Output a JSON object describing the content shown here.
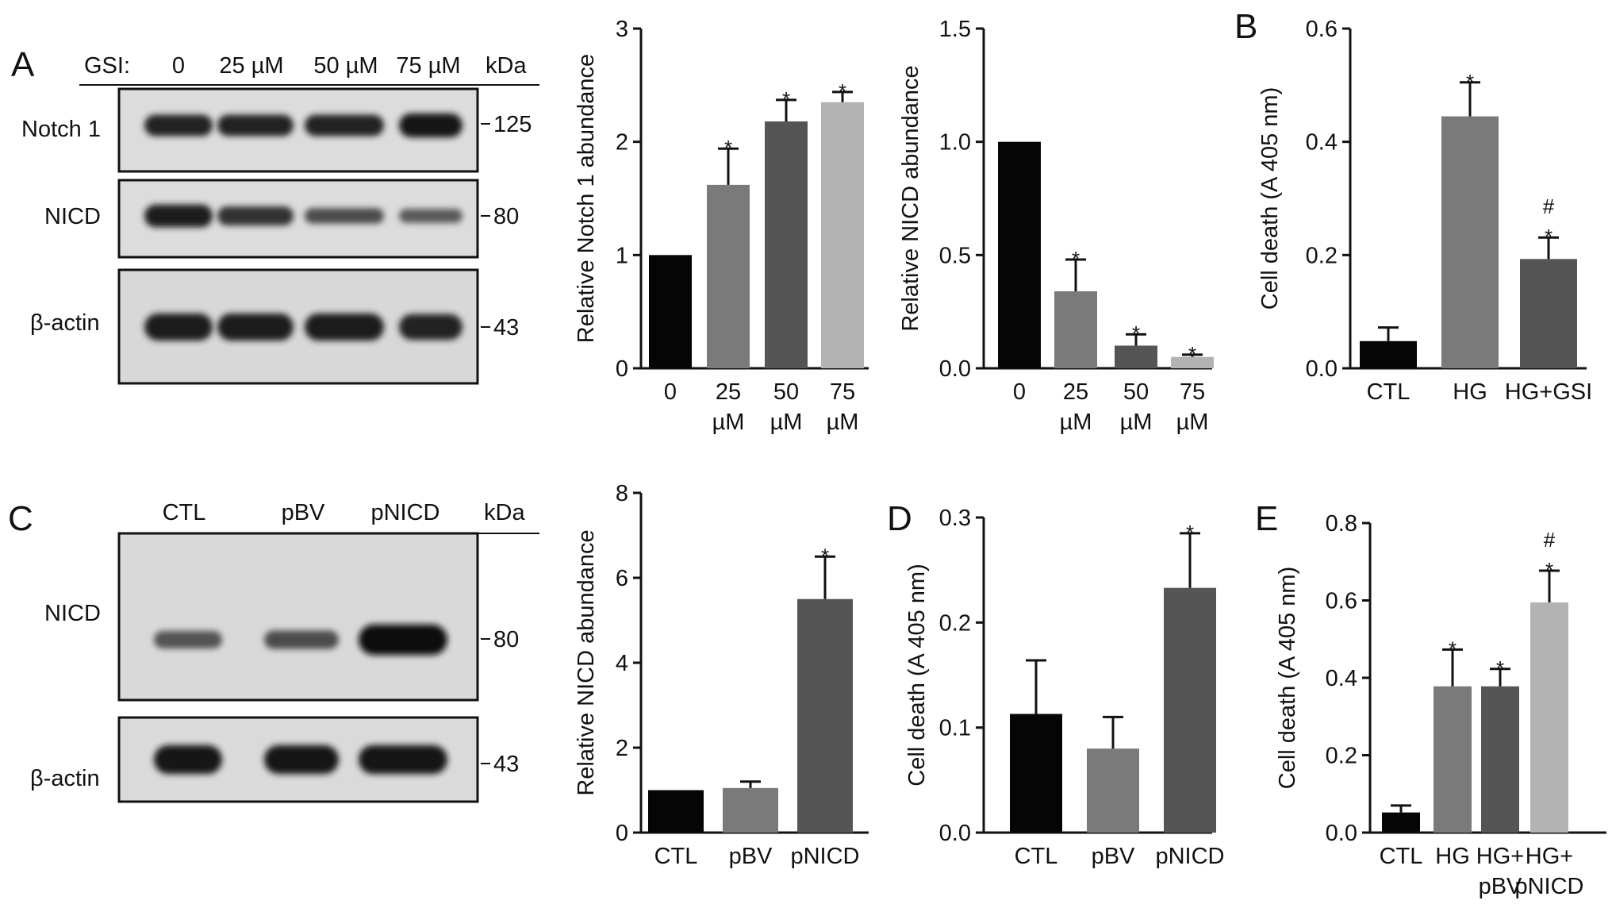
{
  "figure": {
    "panel_letters": [
      "A",
      "B",
      "C",
      "D",
      "E"
    ],
    "blots": [
      {
        "panel": "A",
        "header_label": "GSI:",
        "lanes": [
          "0",
          "25 µM",
          "50 µM",
          "75 µM"
        ],
        "kda_label": "kDa",
        "rows": [
          {
            "label": "Notch 1",
            "kda": "125",
            "intensity": [
              0.85,
              0.85,
              0.85,
              0.95
            ]
          },
          {
            "label": "NICD",
            "kda": "80",
            "intensity": [
              0.9,
              0.75,
              0.55,
              0.45
            ]
          },
          {
            "label": "β-actin",
            "kda": "43",
            "intensity": [
              0.9,
              0.9,
              0.9,
              0.85
            ]
          }
        ]
      },
      {
        "panel": "C",
        "header_label": "",
        "lanes": [
          "CTL",
          "pBV",
          "pNICD"
        ],
        "kda_label": "kDa",
        "rows": [
          {
            "label": "NICD",
            "kda": "80",
            "intensity": [
              0.5,
              0.55,
              1.0
            ]
          },
          {
            "label": "β-actin",
            "kda": "43",
            "intensity": [
              0.95,
              0.95,
              0.95
            ]
          }
        ]
      }
    ]
  },
  "chart_data": [
    {
      "type": "bar",
      "panel": "A",
      "ylabel": "Relative Notch 1 abundance",
      "categories": [
        [
          "0"
        ],
        [
          "25",
          "µM"
        ],
        [
          "50",
          "µM"
        ],
        [
          "75",
          "µM"
        ]
      ],
      "values": [
        1.0,
        1.62,
        2.18,
        2.35
      ],
      "errors": [
        0,
        0.32,
        0.19,
        0.09
      ],
      "annotations": [
        "",
        "*",
        "*",
        "*"
      ],
      "bar_colors": [
        "#050505",
        "#7a7a7a",
        "#555555",
        "#b3b3b3"
      ],
      "ylim": [
        0,
        3
      ],
      "yticks": [
        "0",
        "1",
        "2",
        "3"
      ]
    },
    {
      "type": "bar",
      "panel": "A",
      "ylabel": "Relative NICD abundance",
      "categories": [
        [
          "0"
        ],
        [
          "25",
          "µM"
        ],
        [
          "50",
          "µM"
        ],
        [
          "75",
          "µM"
        ]
      ],
      "values": [
        1.0,
        0.34,
        0.1,
        0.05
      ],
      "errors": [
        0,
        0.14,
        0.05,
        0.01
      ],
      "annotations": [
        "",
        "*",
        "*",
        "*"
      ],
      "bar_colors": [
        "#050505",
        "#7a7a7a",
        "#555555",
        "#b3b3b3"
      ],
      "ylim": [
        0,
        1.5
      ],
      "yticks": [
        "0.0",
        "0.5",
        "1.0",
        "1.5"
      ]
    },
    {
      "type": "bar",
      "panel": "B",
      "ylabel": "Cell death (A 405 nm)",
      "categories": [
        [
          "CTL"
        ],
        [
          "HG"
        ],
        [
          "HG+GSI"
        ]
      ],
      "values": [
        0.048,
        0.445,
        0.193
      ],
      "errors": [
        0.024,
        0.06,
        0.038
      ],
      "annotations": [
        "",
        "*",
        "#\n*"
      ],
      "bar_colors": [
        "#050505",
        "#7a7a7a",
        "#555555"
      ],
      "ylim": [
        0,
        0.6
      ],
      "yticks": [
        "0.0",
        "0.2",
        "0.4",
        "0.6"
      ]
    },
    {
      "type": "bar",
      "panel": "C",
      "ylabel": "Relative NICD abundance",
      "categories": [
        [
          "CTL"
        ],
        [
          "pBV"
        ],
        [
          "pNICD"
        ]
      ],
      "values": [
        1.0,
        1.05,
        5.5
      ],
      "errors": [
        0,
        0.15,
        1.0
      ],
      "annotations": [
        "",
        "",
        "*"
      ],
      "bar_colors": [
        "#050505",
        "#7a7a7a",
        "#555555"
      ],
      "ylim": [
        0,
        8
      ],
      "yticks": [
        "0",
        "2",
        "4",
        "6",
        "8"
      ]
    },
    {
      "type": "bar",
      "panel": "D",
      "ylabel": "Cell death (A 405 nm)",
      "categories": [
        [
          "CTL"
        ],
        [
          "pBV"
        ],
        [
          "pNICD"
        ]
      ],
      "values": [
        0.113,
        0.08,
        0.233
      ],
      "errors": [
        0.051,
        0.03,
        0.052
      ],
      "annotations": [
        "",
        "",
        "*"
      ],
      "bar_colors": [
        "#050505",
        "#7a7a7a",
        "#555555"
      ],
      "ylim": [
        0,
        0.3
      ],
      "yticks": [
        "0.0",
        "0.1",
        "0.2",
        "0.3"
      ]
    },
    {
      "type": "bar",
      "panel": "E",
      "ylabel": "Cell death (A 405 nm)",
      "categories": [
        [
          "CTL"
        ],
        [
          "HG"
        ],
        [
          "HG+",
          "pBV"
        ],
        [
          "HG+",
          "pNICD"
        ]
      ],
      "values": [
        0.052,
        0.378,
        0.378,
        0.595
      ],
      "errors": [
        0.018,
        0.095,
        0.045,
        0.082
      ],
      "annotations": [
        "",
        "*",
        "*",
        "#\n*"
      ],
      "bar_colors": [
        "#050505",
        "#7a7a7a",
        "#555555",
        "#b3b3b3"
      ],
      "ylim": [
        0,
        0.8
      ],
      "yticks": [
        "0.0",
        "0.2",
        "0.4",
        "0.6",
        "0.8"
      ]
    }
  ]
}
